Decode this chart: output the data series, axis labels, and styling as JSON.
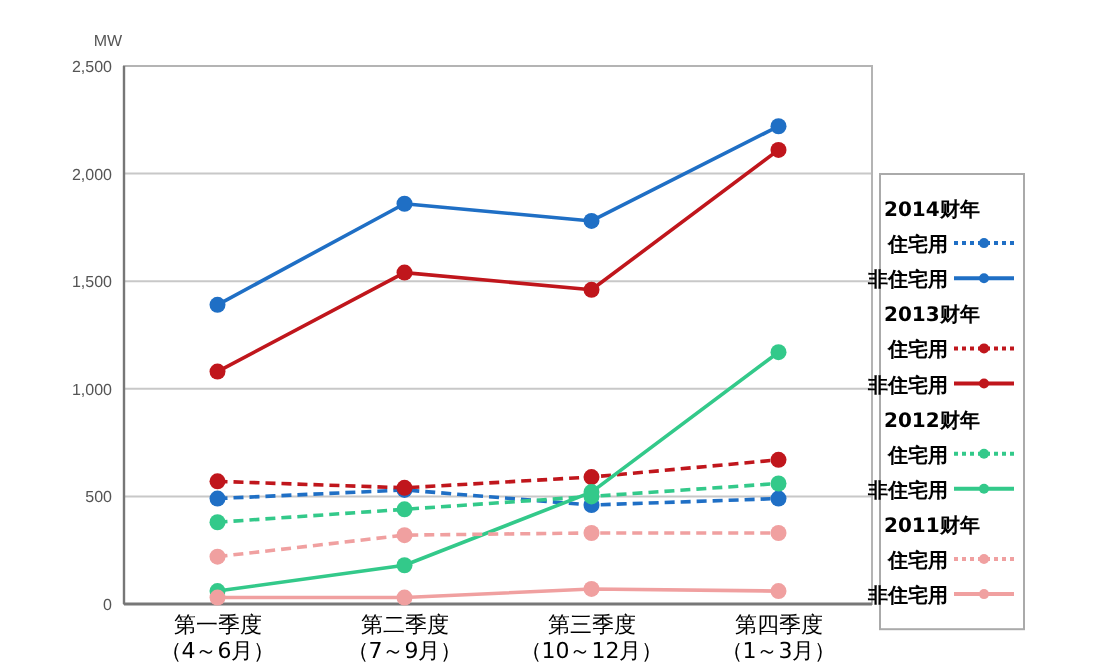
{
  "chart_data": {
    "type": "line",
    "ylabel": "MW",
    "categories": [
      "第一季度（4～6月）",
      "第二季度（7～9月）",
      "第三季度（10～12月）",
      "第四季度（1～3月）"
    ],
    "ylim": [
      0,
      2500
    ],
    "yticks": [
      0,
      {
        "value": 500,
        "label": "500"
      },
      {
        "value": 1000,
        "label": "1,000"
      },
      {
        "value": 1500,
        "label": "1,500"
      },
      {
        "value": 2000,
        "label": "2,000"
      },
      {
        "value": 2500,
        "label": "2,500"
      }
    ],
    "grid": "y",
    "legend": "right",
    "marker": "circle",
    "annotations": [
      "2014财年",
      "2013财年",
      "2012财年",
      "2011财年"
    ],
    "series": [
      {
        "name": "住宅用",
        "color": "#1f6fc5",
        "line_style": "dashed",
        "values": [
          490,
          530,
          460,
          490
        ]
      },
      {
        "name": "非住宅用",
        "color": "#1f6fc5",
        "line_style": "solid",
        "values": [
          1390,
          1860,
          1780,
          2220
        ]
      },
      {
        "name": "住宅用",
        "color": "#c0161c",
        "line_style": "dashed",
        "values": [
          570,
          540,
          590,
          670
        ]
      },
      {
        "name": "非住宅用",
        "color": "#c0161c",
        "line_style": "solid",
        "values": [
          1080,
          1540,
          1460,
          2110
        ]
      },
      {
        "name": "住宅用",
        "color": "#33c98a",
        "line_style": "dashed",
        "values": [
          380,
          440,
          500,
          560
        ]
      },
      {
        "name": "非住宅用",
        "color": "#33c98a",
        "line_style": "solid",
        "values": [
          60,
          180,
          520,
          1170
        ]
      },
      {
        "name": "住宅用",
        "color": "#f0a0a0",
        "line_style": "dashed",
        "values": [
          220,
          320,
          330,
          330
        ]
      },
      {
        "name": "非住宅用",
        "color": "#f0a0a0",
        "line_style": "solid",
        "values": [
          30,
          30,
          70,
          60
        ]
      }
    ]
  }
}
